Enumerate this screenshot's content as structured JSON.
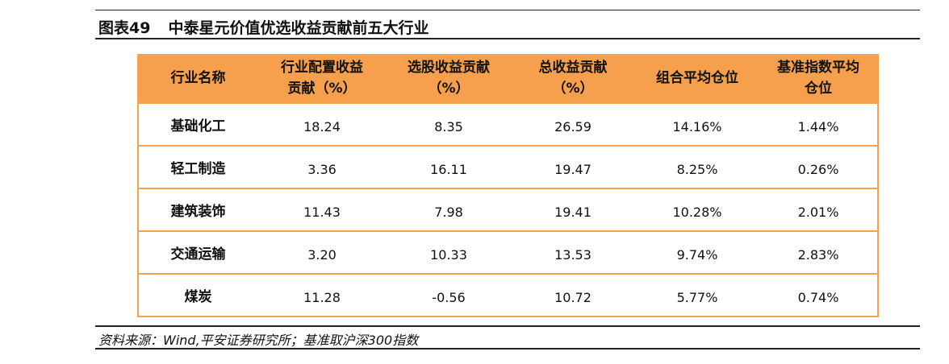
{
  "title": {
    "label": "图表49",
    "text": "中泰星元价值优选收益贡献前五大行业"
  },
  "table": {
    "header": [
      [
        "行业名称"
      ],
      [
        "行业配置收益",
        "贡献（%）"
      ],
      [
        "选股收益贡献",
        "（%）"
      ],
      [
        "总收益贡献",
        "（%）"
      ],
      [
        "组合平均仓位"
      ],
      [
        "基准指数平均",
        "仓位"
      ]
    ],
    "rows": [
      [
        "基础化工",
        "18.24",
        "8.35",
        "26.59",
        "14.16%",
        "1.44%"
      ],
      [
        "轻工制造",
        "3.36",
        "16.11",
        "19.47",
        "8.25%",
        "0.26%"
      ],
      [
        "建筑装饰",
        "11.43",
        "7.98",
        "19.41",
        "10.28%",
        "2.01%"
      ],
      [
        "交通运输",
        "3.20",
        "10.33",
        "13.53",
        "9.74%",
        "2.83%"
      ],
      [
        "煤炭",
        "11.28",
        "-0.56",
        "10.72",
        "5.77%",
        "0.74%"
      ]
    ]
  },
  "source": "资料来源：Wind,平安证券研究所；基准取沪深300指数"
}
